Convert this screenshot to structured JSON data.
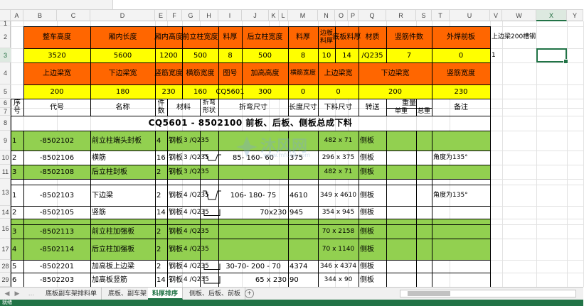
{
  "columns": [
    "A",
    "B",
    "C",
    "D",
    "E",
    "F",
    "G",
    "H",
    "I",
    "J",
    "K",
    "L",
    "M",
    "N",
    "O",
    "P",
    "Q",
    "R",
    "S",
    "T",
    "U",
    "V",
    "W",
    "X",
    "Y"
  ],
  "selected_column": "X",
  "rows": [
    "1",
    "2",
    "3",
    "4",
    "5",
    "6",
    "7",
    "8",
    "9",
    "10",
    "11",
    "13",
    "14",
    "16",
    "17",
    "28",
    "29"
  ],
  "selected_row": "3",
  "header_section": {
    "r2_labels": [
      "整车高度",
      "厢内长度",
      "厢内高度",
      "前立柱宽度",
      "料厚",
      "后立柱宽度",
      "料厚",
      "边板料厚",
      "底板料厚",
      "材质",
      "竖筋件数",
      "外焊前板"
    ],
    "r3_values": [
      "3520",
      "5600",
      "1200",
      "500",
      "8",
      "500",
      "8",
      "10",
      "14",
      "/Q235",
      "7",
      "0"
    ],
    "r4_labels": [
      "上边梁宽",
      "下边梁宽",
      "竖筋宽度",
      "横筋宽度",
      "图号",
      "加高高度",
      "横筋宽度",
      "上边梁宽",
      "下边梁宽",
      "竖筋宽度"
    ],
    "r5_values": [
      "200",
      "180",
      "230",
      "160",
      "CQ5601",
      "300",
      "0",
      "0",
      "200",
      "230"
    ],
    "side_note": "上边梁200槽钢",
    "side_value": "1"
  },
  "table_header": {
    "seq": "序号",
    "code": "代号",
    "name": "名称",
    "qty": "件数",
    "material": "材料",
    "bend_shape": "折弯形状",
    "bend_size": "折弯尺寸",
    "length": "长度尺寸",
    "cut_size": "下料尺寸",
    "transfer": "转送",
    "weight": "重量",
    "unit_weight": "单重",
    "total_weight": "总重",
    "remark": "备注"
  },
  "section_title": "CQ5601 -  8502100 前板、后板、侧板总成下料",
  "data_rows": [
    {
      "row": "9",
      "seq": "1",
      "code": "-8502102",
      "name": "前立柱端头封板",
      "qty": "4",
      "mat": "钢板",
      "thk": "3 /Q235",
      "bend": "",
      "length": "",
      "cut": "482 x 71",
      "transfer": "侧板",
      "remark": ""
    },
    {
      "row": "10",
      "seq": "2",
      "code": "-8502106",
      "name": "横筋",
      "qty": "16",
      "mat": "钢板",
      "thk": "3 /Q235",
      "bend": "85- 160- 60",
      "length": "375",
      "cut": "296 x 375",
      "transfer": "侧板",
      "remark": "角度为135°"
    },
    {
      "row": "11",
      "seq": "3",
      "code": "-8502108",
      "name": "后立柱封板",
      "qty": "2",
      "mat": "钢板",
      "thk": "3 /Q235",
      "bend": "",
      "length": "",
      "cut": "482 x 71",
      "transfer": "侧板",
      "remark": ""
    },
    {
      "row": "13",
      "seq": "1",
      "code": "-8502103",
      "name": "下边梁",
      "qty": "2",
      "mat": "钢板",
      "thk": "4 /Q235",
      "bend": "106- 180- 75",
      "length": "4610",
      "cut": "349 x 4610",
      "transfer": "侧板",
      "remark": "角度为135°"
    },
    {
      "row": "14",
      "seq": "2",
      "code": "-8502105",
      "name": "竖筋",
      "qty": "14",
      "mat": "钢板",
      "thk": "4 /Q235",
      "bend": "70x230",
      "length": "945",
      "cut": "354 x 945",
      "transfer": "侧板",
      "remark": ""
    },
    {
      "row": "16",
      "seq": "3",
      "code": "-8502113",
      "name": "前立柱加强板",
      "qty": "2",
      "mat": "钢板",
      "thk": "4 /Q235",
      "bend": "",
      "length": "",
      "cut": "70 x 2158",
      "transfer": "侧板",
      "remark": ""
    },
    {
      "row": "17",
      "seq": "4",
      "code": "-8502114",
      "name": "后立柱加强板",
      "qty": "2",
      "mat": "钢板",
      "thk": "4 /Q235",
      "bend": "",
      "length": "",
      "cut": "70 x 1140",
      "transfer": "侧板",
      "remark": ""
    },
    {
      "row": "28",
      "seq": "5",
      "code": "-8502201",
      "name": "加高板上边梁",
      "qty": "2",
      "mat": "钢板",
      "thk": "4 /Q235",
      "bend": "30-70- 200 - 70",
      "length": "4374",
      "cut": "346 x 4374",
      "transfer": "侧板",
      "remark": ""
    },
    {
      "row": "29",
      "seq": "6",
      "code": "-8502203",
      "name": "加高板竖筋",
      "qty": "14",
      "mat": "钢板",
      "thk": "4 /Q235",
      "bend": "65 x 230",
      "length": "90",
      "cut": "344 x 90",
      "transfer": "侧板",
      "remark": ""
    }
  ],
  "watermark": {
    "text": "沐风网",
    "url": "www.mfcad.com"
  },
  "sheet_tabs": [
    "底板副车架排料单",
    "底板、副车架",
    "料厚排序",
    "侧板、后板、前板"
  ],
  "active_tab_index": 2,
  "status": "就绪",
  "colors": {
    "orange": "#ff6600",
    "yellow": "#ffff00",
    "green": "#92d050",
    "excel_green": "#217346"
  },
  "icons": [
    "tab-prev-icon",
    "tab-next-icon",
    "add-sheet-icon",
    "ellipsis-icon"
  ]
}
